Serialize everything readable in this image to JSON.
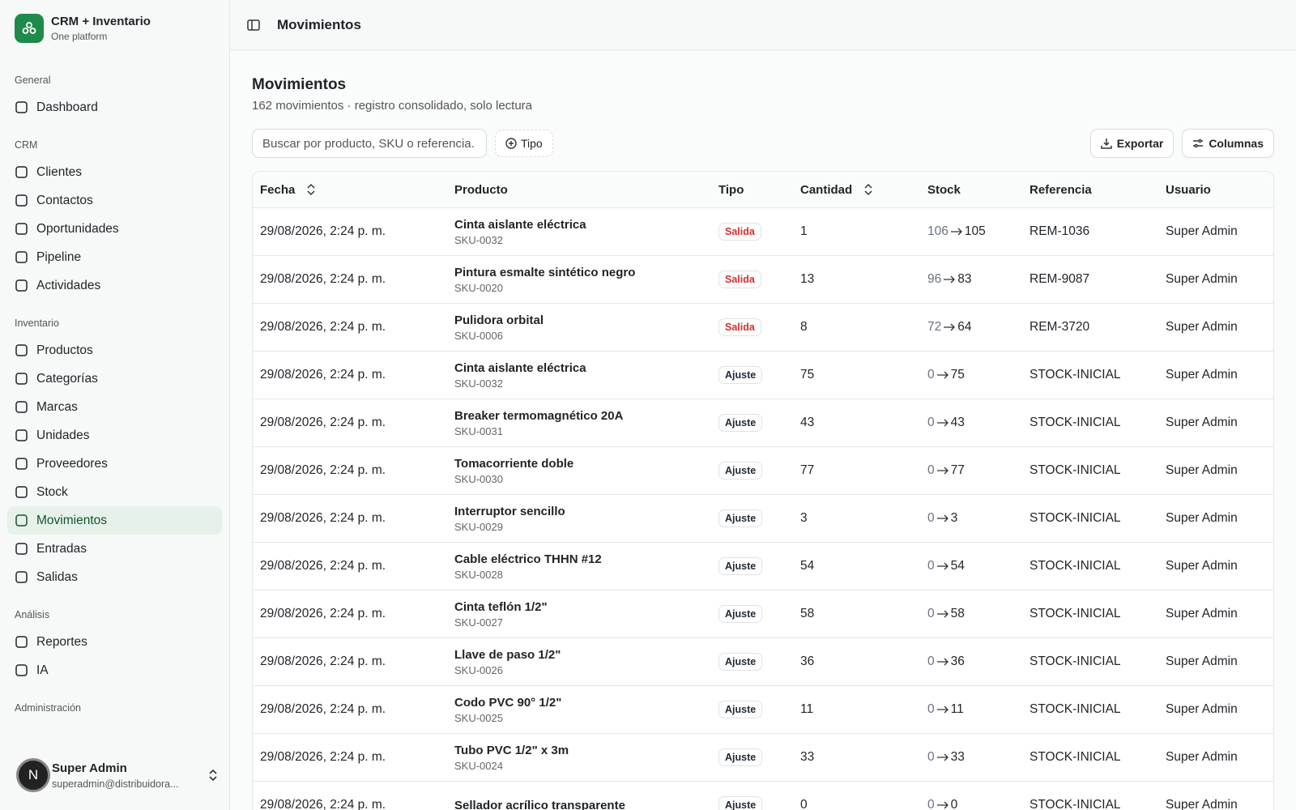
{
  "sidebar": {
    "brand": {
      "name": "CRM + Inventario",
      "tagline": "One platform"
    },
    "sections": [
      {
        "title": "General",
        "items": [
          {
            "label": "Dashboard"
          }
        ]
      },
      {
        "title": "CRM",
        "items": [
          {
            "label": "Clientes"
          },
          {
            "label": "Contactos"
          },
          {
            "label": "Oportunidades"
          },
          {
            "label": "Pipeline"
          },
          {
            "label": "Actividades"
          }
        ]
      },
      {
        "title": "Inventario",
        "items": [
          {
            "label": "Productos"
          },
          {
            "label": "Categorías"
          },
          {
            "label": "Marcas"
          },
          {
            "label": "Unidades"
          },
          {
            "label": "Proveedores"
          },
          {
            "label": "Stock"
          },
          {
            "label": "Movimientos",
            "active": true
          },
          {
            "label": "Entradas"
          },
          {
            "label": "Salidas"
          }
        ]
      },
      {
        "title": "Análisis",
        "items": [
          {
            "label": "Reportes"
          },
          {
            "label": "IA"
          }
        ]
      },
      {
        "title": "Administración",
        "items": []
      }
    ],
    "user": {
      "initial": "N",
      "name": "Super Admin",
      "email": "superadmin@distribuidora..."
    }
  },
  "header": {
    "title": "Movimientos"
  },
  "page": {
    "title": "Movimientos",
    "subtitle": "162 movimientos · registro consolidado, solo lectura",
    "search_placeholder": "Buscar por producto, SKU o referencia.",
    "filter": "Tipo",
    "buttons": [
      "Exportar",
      "Columnas"
    ]
  },
  "table": {
    "columns": [
      {
        "label": "Fecha",
        "sortable": true
      },
      {
        "label": "Producto"
      },
      {
        "label": "Tipo"
      },
      {
        "label": "Cantidad",
        "sortable": true
      },
      {
        "label": "Stock"
      },
      {
        "label": "Referencia"
      },
      {
        "label": "Usuario"
      }
    ],
    "rows": [
      {
        "date": "29/08/2026, 2:24 p. m.",
        "product": "Cinta aislante eléctrica",
        "sku": "SKU-0032",
        "type": "Salida",
        "type_color": "#d32f2f",
        "quantity": 1,
        "stock_from": 106,
        "stock_to": 105,
        "reference": "REM-1036",
        "user": "Super Admin"
      },
      {
        "date": "29/08/2026, 2:24 p. m.",
        "product": "Pintura esmalte sintético negro",
        "sku": "SKU-0020",
        "type": "Salida",
        "type_color": "#d32f2f",
        "quantity": 13,
        "stock_from": 96,
        "stock_to": 83,
        "reference": "REM-9087",
        "user": "Super Admin"
      },
      {
        "date": "29/08/2026, 2:24 p. m.",
        "product": "Pulidora orbital",
        "sku": "SKU-0006",
        "type": "Salida",
        "type_color": "#d32f2f",
        "quantity": 8,
        "stock_from": 72,
        "stock_to": 64,
        "reference": "REM-3720",
        "user": "Super Admin"
      },
      {
        "date": "29/08/2026, 2:24 p. m.",
        "product": "Cinta aislante eléctrica",
        "sku": "SKU-0032",
        "type": "Ajuste",
        "type_color": "#1f2937",
        "quantity": 75,
        "stock_from": 0,
        "stock_to": 75,
        "reference": "STOCK-INICIAL",
        "user": "Super Admin"
      },
      {
        "date": "29/08/2026, 2:24 p. m.",
        "product": "Breaker termomagnético 20A",
        "sku": "SKU-0031",
        "type": "Ajuste",
        "type_color": "#1f2937",
        "quantity": 43,
        "stock_from": 0,
        "stock_to": 43,
        "reference": "STOCK-INICIAL",
        "user": "Super Admin"
      },
      {
        "date": "29/08/2026, 2:24 p. m.",
        "product": "Tomacorriente doble",
        "sku": "SKU-0030",
        "type": "Ajuste",
        "type_color": "#1f2937",
        "quantity": 77,
        "stock_from": 0,
        "stock_to": 77,
        "reference": "STOCK-INICIAL",
        "user": "Super Admin"
      },
      {
        "date": "29/08/2026, 2:24 p. m.",
        "product": "Interruptor sencillo",
        "sku": "SKU-0029",
        "type": "Ajuste",
        "type_color": "#1f2937",
        "quantity": 3,
        "stock_from": 0,
        "stock_to": 3,
        "reference": "STOCK-INICIAL",
        "user": "Super Admin"
      },
      {
        "date": "29/08/2026, 2:24 p. m.",
        "product": "Cable eléctrico THHN #12",
        "sku": "SKU-0028",
        "type": "Ajuste",
        "type_color": "#1f2937",
        "quantity": 54,
        "stock_from": 0,
        "stock_to": 54,
        "reference": "STOCK-INICIAL",
        "user": "Super Admin"
      },
      {
        "date": "29/08/2026, 2:24 p. m.",
        "product": "Cinta teflón 1/2\"",
        "sku": "SKU-0027",
        "type": "Ajuste",
        "type_color": "#1f2937",
        "quantity": 58,
        "stock_from": 0,
        "stock_to": 58,
        "reference": "STOCK-INICIAL",
        "user": "Super Admin"
      },
      {
        "date": "29/08/2026, 2:24 p. m.",
        "product": "Llave de paso 1/2\"",
        "sku": "SKU-0026",
        "type": "Ajuste",
        "type_color": "#1f2937",
        "quantity": 36,
        "stock_from": 0,
        "stock_to": 36,
        "reference": "STOCK-INICIAL",
        "user": "Super Admin"
      },
      {
        "date": "29/08/2026, 2:24 p. m.",
        "product": "Codo PVC 90° 1/2\"",
        "sku": "SKU-0025",
        "type": "Ajuste",
        "type_color": "#1f2937",
        "quantity": 11,
        "stock_from": 0,
        "stock_to": 11,
        "reference": "STOCK-INICIAL",
        "user": "Super Admin"
      },
      {
        "date": "29/08/2026, 2:24 p. m.",
        "product": "Tubo PVC 1/2\" x 3m",
        "sku": "SKU-0024",
        "type": "Ajuste",
        "type_color": "#1f2937",
        "quantity": 33,
        "stock_from": 0,
        "stock_to": 33,
        "reference": "STOCK-INICIAL",
        "user": "Super Admin"
      },
      {
        "date": "29/08/2026, 2:24 p. m.",
        "product": "Sellador acrílico transparente",
        "type": "Ajuste",
        "type_color": "#1f2937",
        "quantity": 0,
        "stock_from": 0,
        "stock_to": 0,
        "reference": "STOCK-INICIAL",
        "user": "Super Admin"
      }
    ]
  }
}
